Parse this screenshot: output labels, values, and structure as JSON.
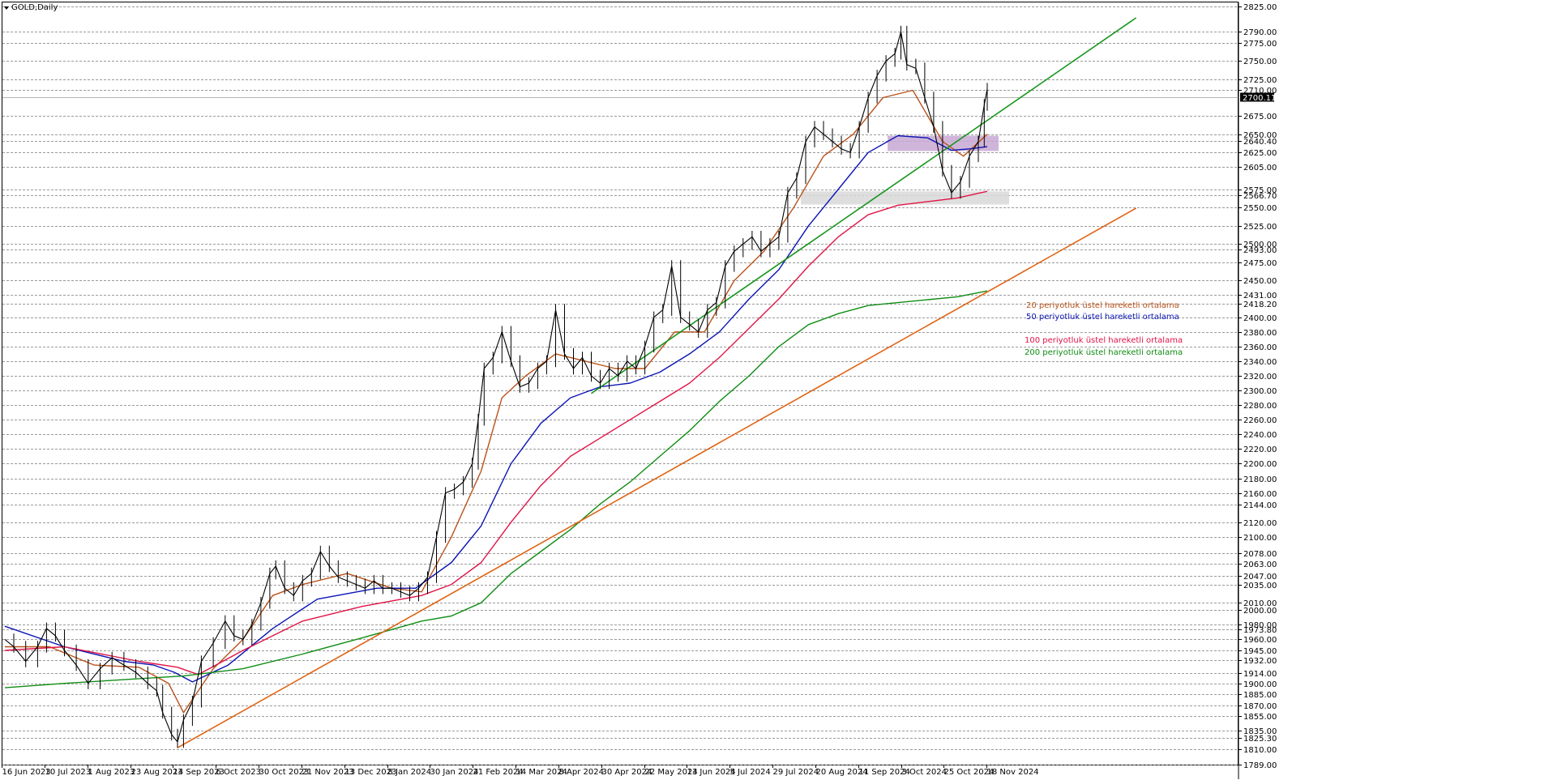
{
  "chart_data": {
    "type": "line",
    "title": "GOLD,Daily",
    "y_axis": {
      "ylim": [
        1789,
        2830
      ],
      "tick_labels": [
        "2825.00",
        "2790.00",
        "2775.00",
        "2750.00",
        "2725.00",
        "2710.00",
        "2675.00",
        "2650.00",
        "2640.40",
        "2625.00",
        "2605.00",
        "2575.00",
        "2566.70",
        "2550.00",
        "2525.00",
        "2500.00",
        "2493.00",
        "2475.00",
        "2450.00",
        "2431.00",
        "2418.20",
        "2400.00",
        "2380.00",
        "2360.00",
        "2340.00",
        "2320.00",
        "2300.00",
        "2280.00",
        "2260.00",
        "2240.00",
        "2220.00",
        "2200.00",
        "2180.00",
        "2160.00",
        "2144.00",
        "2120.00",
        "2100.00",
        "2078.00",
        "2063.00",
        "2047.00",
        "2035.00",
        "2010.00",
        "2000.00",
        "1980.00",
        "1973.80",
        "1960.00",
        "1945.00",
        "1932.00",
        "1914.00",
        "1900.00",
        "1885.00",
        "1870.00",
        "1855.00",
        "1835.00",
        "1825.30",
        "1810.00",
        "1789.00"
      ],
      "current_price": "2700.11"
    },
    "x_axis": {
      "tick_labels": [
        "16 Jun 2023",
        "10 Jul 2023",
        "1 Aug 2023",
        "23 Aug 2023",
        "14 Sep 2023",
        "6 Oct 2023",
        "30 Oct 2023",
        "21 Nov 2023",
        "13 Dec 2023",
        "8 Jan 2024",
        "30 Jan 2024",
        "21 Feb 2024",
        "14 Mar 2024",
        "8 Apr 2024",
        "30 Apr 2024",
        "22 May 2024",
        "13 Jun 2024",
        "5 Jul 2024",
        "29 Jul 2024",
        "20 Aug 2024",
        "11 Sep 2024",
        "3 Oct 2024",
        "25 Oct 2024",
        "18 Nov 2024"
      ]
    },
    "grid": true,
    "price_path_points": [
      [
        0,
        1960
      ],
      [
        3,
        1950
      ],
      [
        7,
        1930
      ],
      [
        11,
        1950
      ],
      [
        14,
        1975
      ],
      [
        17,
        1965
      ],
      [
        20,
        1945
      ],
      [
        24,
        1925
      ],
      [
        28,
        1900
      ],
      [
        32,
        1920
      ],
      [
        36,
        1935
      ],
      [
        40,
        1925
      ],
      [
        44,
        1915
      ],
      [
        48,
        1900
      ],
      [
        51,
        1890
      ],
      [
        53,
        1860
      ],
      [
        56,
        1830
      ],
      [
        58,
        1820
      ],
      [
        60,
        1850
      ],
      [
        63,
        1875
      ],
      [
        66,
        1930
      ],
      [
        70,
        1955
      ],
      [
        74,
        1985
      ],
      [
        77,
        1965
      ],
      [
        80,
        1960
      ],
      [
        83,
        1980
      ],
      [
        86,
        2010
      ],
      [
        89,
        2050
      ],
      [
        91,
        2060
      ],
      [
        94,
        2030
      ],
      [
        97,
        2020
      ],
      [
        100,
        2040
      ],
      [
        103,
        2050
      ],
      [
        106,
        2080
      ],
      [
        109,
        2060
      ],
      [
        112,
        2045
      ],
      [
        115,
        2040
      ],
      [
        118,
        2035
      ],
      [
        121,
        2030
      ],
      [
        124,
        2040
      ],
      [
        127,
        2030
      ],
      [
        130,
        2030
      ],
      [
        133,
        2025
      ],
      [
        136,
        2020
      ],
      [
        139,
        2030
      ],
      [
        142,
        2045
      ],
      [
        145,
        2100
      ],
      [
        148,
        2160
      ],
      [
        151,
        2165
      ],
      [
        154,
        2175
      ],
      [
        157,
        2200
      ],
      [
        159,
        2260
      ],
      [
        161,
        2330
      ],
      [
        164,
        2345
      ],
      [
        167,
        2380
      ],
      [
        170,
        2340
      ],
      [
        173,
        2305
      ],
      [
        176,
        2310
      ],
      [
        179,
        2330
      ],
      [
        182,
        2340
      ],
      [
        185,
        2410
      ],
      [
        188,
        2350
      ],
      [
        191,
        2330
      ],
      [
        194,
        2345
      ],
      [
        197,
        2320
      ],
      [
        200,
        2310
      ],
      [
        203,
        2330
      ],
      [
        206,
        2320
      ],
      [
        209,
        2340
      ],
      [
        212,
        2330
      ],
      [
        215,
        2360
      ],
      [
        218,
        2400
      ],
      [
        221,
        2410
      ],
      [
        224,
        2470
      ],
      [
        227,
        2400
      ],
      [
        230,
        2390
      ],
      [
        233,
        2380
      ],
      [
        236,
        2410
      ],
      [
        239,
        2420
      ],
      [
        242,
        2470
      ],
      [
        245,
        2490
      ],
      [
        248,
        2500
      ],
      [
        251,
        2510
      ],
      [
        254,
        2490
      ],
      [
        257,
        2500
      ],
      [
        260,
        2510
      ],
      [
        263,
        2570
      ],
      [
        266,
        2590
      ],
      [
        269,
        2640
      ],
      [
        272,
        2660
      ],
      [
        275,
        2650
      ],
      [
        278,
        2640
      ],
      [
        281,
        2630
      ],
      [
        284,
        2625
      ],
      [
        287,
        2660
      ],
      [
        290,
        2700
      ],
      [
        293,
        2730
      ],
      [
        296,
        2750
      ],
      [
        299,
        2760
      ],
      [
        301,
        2790
      ],
      [
        303,
        2745
      ],
      [
        306,
        2740
      ],
      [
        309,
        2700
      ],
      [
        312,
        2660
      ],
      [
        315,
        2600
      ],
      [
        318,
        2570
      ],
      [
        321,
        2585
      ],
      [
        324,
        2620
      ],
      [
        327,
        2640
      ],
      [
        329,
        2690
      ],
      [
        330,
        2712
      ]
    ],
    "series": [
      {
        "name": "20 periyotluk üstel hareketli ortalama",
        "color": "#b8521a",
        "points": [
          [
            0,
            1950
          ],
          [
            15,
            1950
          ],
          [
            30,
            1925
          ],
          [
            45,
            1922
          ],
          [
            55,
            1900
          ],
          [
            60,
            1860
          ],
          [
            70,
            1920
          ],
          [
            80,
            1960
          ],
          [
            90,
            2020
          ],
          [
            100,
            2035
          ],
          [
            115,
            2050
          ],
          [
            130,
            2030
          ],
          [
            140,
            2025
          ],
          [
            150,
            2100
          ],
          [
            160,
            2190
          ],
          [
            167,
            2290
          ],
          [
            175,
            2320
          ],
          [
            185,
            2350
          ],
          [
            195,
            2340
          ],
          [
            205,
            2330
          ],
          [
            215,
            2330
          ],
          [
            225,
            2380
          ],
          [
            235,
            2380
          ],
          [
            245,
            2450
          ],
          [
            255,
            2490
          ],
          [
            265,
            2550
          ],
          [
            275,
            2620
          ],
          [
            285,
            2650
          ],
          [
            295,
            2700
          ],
          [
            305,
            2710
          ],
          [
            315,
            2640
          ],
          [
            322,
            2620
          ],
          [
            330,
            2650
          ]
        ]
      },
      {
        "name": "50 periyotluk üstel hareketli ortalama",
        "color": "#0a14b4",
        "points": [
          [
            0,
            1978
          ],
          [
            20,
            1950
          ],
          [
            40,
            1930
          ],
          [
            50,
            1925
          ],
          [
            57,
            1915
          ],
          [
            63,
            1902
          ],
          [
            75,
            1925
          ],
          [
            90,
            1975
          ],
          [
            105,
            2015
          ],
          [
            125,
            2030
          ],
          [
            138,
            2030
          ],
          [
            150,
            2065
          ],
          [
            160,
            2115
          ],
          [
            170,
            2200
          ],
          [
            180,
            2255
          ],
          [
            190,
            2290
          ],
          [
            200,
            2305
          ],
          [
            210,
            2310
          ],
          [
            220,
            2325
          ],
          [
            230,
            2350
          ],
          [
            240,
            2380
          ],
          [
            250,
            2425
          ],
          [
            260,
            2465
          ],
          [
            270,
            2525
          ],
          [
            280,
            2575
          ],
          [
            290,
            2625
          ],
          [
            300,
            2648
          ],
          [
            310,
            2645
          ],
          [
            318,
            2628
          ],
          [
            324,
            2630
          ],
          [
            330,
            2633
          ]
        ]
      },
      {
        "name": "100 periyotluk üstel hareketli ortalama",
        "color": "#e01446",
        "points": [
          [
            0,
            1945
          ],
          [
            20,
            1950
          ],
          [
            45,
            1930
          ],
          [
            58,
            1922
          ],
          [
            65,
            1912
          ],
          [
            80,
            1945
          ],
          [
            100,
            1985
          ],
          [
            120,
            2005
          ],
          [
            140,
            2020
          ],
          [
            150,
            2035
          ],
          [
            160,
            2065
          ],
          [
            170,
            2120
          ],
          [
            180,
            2170
          ],
          [
            190,
            2210
          ],
          [
            200,
            2235
          ],
          [
            210,
            2260
          ],
          [
            220,
            2285
          ],
          [
            230,
            2310
          ],
          [
            240,
            2345
          ],
          [
            250,
            2385
          ],
          [
            260,
            2425
          ],
          [
            270,
            2470
          ],
          [
            280,
            2510
          ],
          [
            290,
            2540
          ],
          [
            300,
            2553
          ],
          [
            310,
            2558
          ],
          [
            320,
            2563
          ],
          [
            330,
            2572
          ]
        ]
      },
      {
        "name": "200 periyotluk üstel hareketli ortalama",
        "color": "#108c14",
        "points": [
          [
            0,
            1894
          ],
          [
            20,
            1900
          ],
          [
            40,
            1905
          ],
          [
            60,
            1910
          ],
          [
            80,
            1920
          ],
          [
            100,
            1940
          ],
          [
            120,
            1962
          ],
          [
            140,
            1985
          ],
          [
            150,
            1992
          ],
          [
            160,
            2010
          ],
          [
            170,
            2050
          ],
          [
            180,
            2080
          ],
          [
            190,
            2110
          ],
          [
            200,
            2145
          ],
          [
            210,
            2175
          ],
          [
            220,
            2210
          ],
          [
            230,
            2245
          ],
          [
            240,
            2285
          ],
          [
            250,
            2320
          ],
          [
            260,
            2360
          ],
          [
            270,
            2390
          ],
          [
            280,
            2405
          ],
          [
            290,
            2416
          ],
          [
            300,
            2420
          ],
          [
            310,
            2424
          ],
          [
            320,
            2428
          ],
          [
            330,
            2436
          ]
        ]
      },
      {
        "name": "",
        "color": "#e06414",
        "points": [
          [
            58,
            1812
          ],
          [
            380,
            2549
          ]
        ]
      },
      {
        "name": "",
        "color": "#18961e",
        "points": [
          [
            197,
            2296
          ],
          [
            380,
            2809
          ]
        ]
      }
    ],
    "zones": [
      {
        "range": [
          2627,
          2648
        ],
        "color": "#c8a8d4"
      },
      {
        "range": [
          2554,
          2572
        ],
        "color": "#d8d8d8"
      }
    ]
  }
}
